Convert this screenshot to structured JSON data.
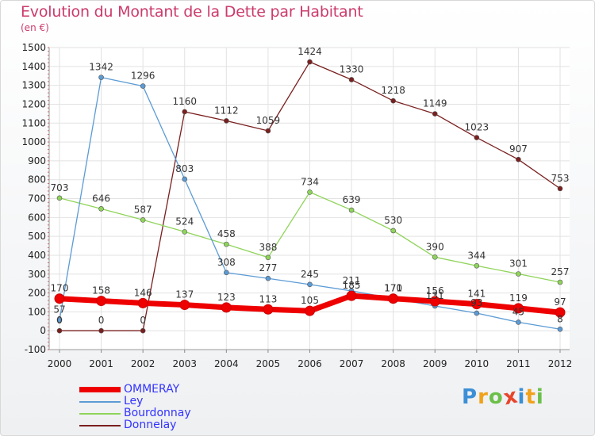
{
  "header": {
    "title": "Evolution du Montant de la Dette par Habitant",
    "subtitle": "(en €)"
  },
  "logo": {
    "text": "Proxiti",
    "letters": [
      "P",
      "r",
      "o",
      "x",
      "i",
      "t",
      "i"
    ],
    "colors": [
      "#3b8fd6",
      "#f0a21a",
      "#6cc04a",
      "#e8452c",
      "#3b8fd6",
      "#f0a21a",
      "#6cc04a"
    ]
  },
  "chart_data": {
    "type": "line",
    "categories": [
      "2000",
      "2001",
      "2002",
      "2003",
      "2004",
      "2005",
      "2006",
      "2007",
      "2008",
      "2009",
      "2010",
      "2011",
      "2012"
    ],
    "ylim": [
      -100,
      1500
    ],
    "yticks": [
      "-100",
      "0",
      "100",
      "200",
      "300",
      "400",
      "500",
      "600",
      "700",
      "800",
      "900",
      "1000",
      "1100",
      "1200",
      "1300",
      "1400",
      "1500"
    ],
    "grid": true,
    "legend_position": "bottom-left",
    "series": [
      {
        "name": "OMMERAY",
        "color": "#ee0000",
        "values": [
          170,
          158,
          146,
          137,
          123,
          113,
          105,
          185,
          170,
          156,
          141,
          119,
          97
        ],
        "labels": [
          "170",
          "158",
          "146",
          "137",
          "123",
          "113",
          "105",
          "185",
          "170",
          "156",
          "141",
          "119",
          "97"
        ]
      },
      {
        "name": "Ley",
        "color": "#5b9bd5",
        "values": [
          57,
          1342,
          1296,
          803,
          308,
          277,
          245,
          211,
          171,
          131,
          93,
          45,
          8
        ],
        "labels": [
          "57",
          "1342",
          "1296",
          "803",
          "308",
          "277",
          "245",
          "211",
          "171",
          "131",
          "93",
          "45",
          "8"
        ]
      },
      {
        "name": "Bourdonnay",
        "color": "#8fd45a",
        "values": [
          703,
          646,
          587,
          524,
          458,
          388,
          734,
          639,
          530,
          390,
          344,
          301,
          257
        ],
        "labels": [
          "703",
          "646",
          "587",
          "524",
          "458",
          "388",
          "734",
          "639",
          "530",
          "390",
          "344",
          "301",
          "257"
        ]
      },
      {
        "name": "Donnelay",
        "color": "#7a1f1f",
        "values": [
          0,
          0,
          0,
          1160,
          1112,
          1059,
          1424,
          1330,
          1218,
          1149,
          1023,
          907,
          753
        ],
        "labels": [
          "0",
          "0",
          "0",
          "1160",
          "1112",
          "1059",
          "1424",
          "1330",
          "1218",
          "1149",
          "1023",
          "907",
          "753"
        ]
      }
    ]
  }
}
